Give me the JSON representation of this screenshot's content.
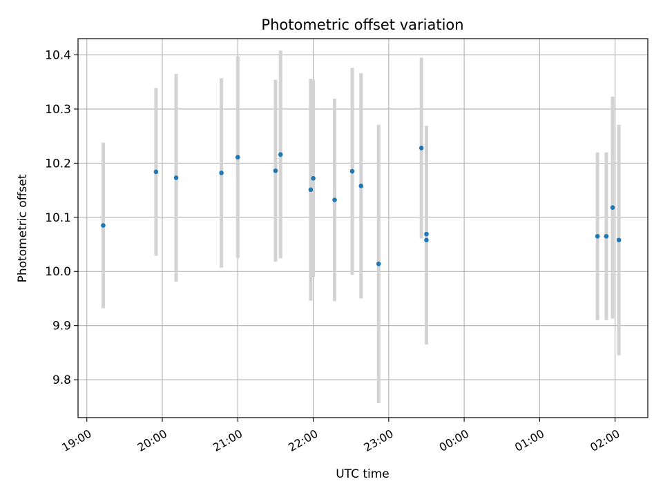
{
  "chart_data": {
    "type": "scatter",
    "title": "Photometric offset variation",
    "xlabel": "UTC time",
    "ylabel": "Photometric offset",
    "x_axis_kind": "time",
    "xlim": [
      "18:53",
      "02:26"
    ],
    "ylim": [
      9.73,
      10.43
    ],
    "x_ticks": [
      {
        "t": "19:00",
        "label": "19:00"
      },
      {
        "t": "20:00",
        "label": "20:00"
      },
      {
        "t": "21:00",
        "label": "21:00"
      },
      {
        "t": "22:00",
        "label": "22:00"
      },
      {
        "t": "23:00",
        "label": "23:00"
      },
      {
        "t": "00:00",
        "label": "00:00"
      },
      {
        "t": "01:00",
        "label": "01:00"
      },
      {
        "t": "02:00",
        "label": "02:00"
      }
    ],
    "y_ticks": [
      {
        "v": 9.8,
        "label": "9.8"
      },
      {
        "v": 9.9,
        "label": "9.9"
      },
      {
        "v": 10.0,
        "label": "10.0"
      },
      {
        "v": 10.1,
        "label": "10.1"
      },
      {
        "v": 10.2,
        "label": "10.2"
      },
      {
        "v": 10.3,
        "label": "10.3"
      },
      {
        "v": 10.4,
        "label": "10.4"
      }
    ],
    "grid": true,
    "series": [
      {
        "marker_color": "#1f77b4",
        "errorbar_color": "#d3d3d3",
        "points": [
          {
            "t": "19:13",
            "y": 10.085,
            "err": 0.153
          },
          {
            "t": "19:55",
            "y": 10.184,
            "err": 0.155
          },
          {
            "t": "20:11",
            "y": 10.173,
            "err": 0.192
          },
          {
            "t": "20:47",
            "y": 10.182,
            "err": 0.175
          },
          {
            "t": "21:00",
            "y": 10.211,
            "err": 0.186
          },
          {
            "t": "21:30",
            "y": 10.186,
            "err": 0.168
          },
          {
            "t": "21:34",
            "y": 10.216,
            "err": 0.192
          },
          {
            "t": "21:58",
            "y": 10.151,
            "err": 0.205
          },
          {
            "t": "22:00",
            "y": 10.172,
            "err": 0.182
          },
          {
            "t": "22:17",
            "y": 10.132,
            "err": 0.187
          },
          {
            "t": "22:31",
            "y": 10.185,
            "err": 0.191
          },
          {
            "t": "22:38",
            "y": 10.158,
            "err": 0.208
          },
          {
            "t": "22:52",
            "y": 10.014,
            "err": 0.257
          },
          {
            "t": "23:26",
            "y": 10.228,
            "err": 0.167
          },
          {
            "t": "23:30",
            "y": 10.069,
            "err": 0.2
          },
          {
            "t": "23:30",
            "y": 10.058,
            "err": 0.193
          },
          {
            "t": "01:46",
            "y": 10.065,
            "err": 0.155
          },
          {
            "t": "01:53",
            "y": 10.065,
            "err": 0.155
          },
          {
            "t": "01:58",
            "y": 10.118,
            "err": 0.205
          },
          {
            "t": "02:03",
            "y": 10.058,
            "err": 0.213
          }
        ]
      }
    ]
  }
}
